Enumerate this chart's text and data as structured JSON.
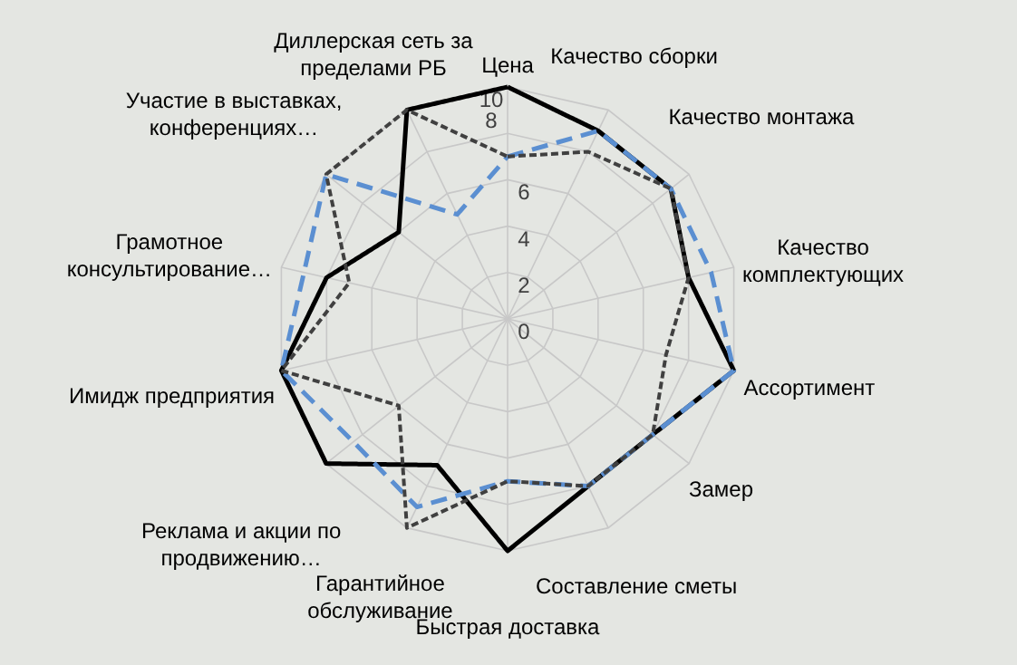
{
  "chart_data": {
    "type": "radar",
    "categories": [
      "Цена",
      "Качество сборки",
      "Качество монтажа",
      "Качество комплектующих",
      "Ассортимент",
      "Замер",
      "Составление сметы",
      "Быстрая доставка",
      "Гарантийное обслуживание",
      "Реклама и акции по продвижению…",
      "Имидж предприятия",
      "Грамотное консультирование…",
      "Участие в выставках, конференциях…",
      "Диллерская сеть за пределами РБ"
    ],
    "series": [
      {
        "color": "#000000",
        "line_style": "solid",
        "values": [
          10,
          9,
          9,
          8,
          10,
          8,
          8,
          10,
          7,
          10,
          10,
          8,
          6,
          10
        ]
      },
      {
        "color": "#5b8fd1",
        "line_style": "dashed",
        "values": [
          7,
          9,
          9,
          9,
          10,
          8,
          8,
          7,
          9,
          8.5,
          10,
          9,
          10,
          5
        ]
      },
      {
        "color": "#404040",
        "line_style": "dotted",
        "values": [
          7,
          8,
          9,
          8,
          7,
          8,
          8,
          7,
          10,
          6,
          10,
          7,
          10,
          10
        ]
      }
    ],
    "ylim": [
      0,
      10
    ],
    "yticks": [
      0,
      2,
      4,
      6,
      8,
      10
    ],
    "grid": true,
    "marker": "none"
  }
}
